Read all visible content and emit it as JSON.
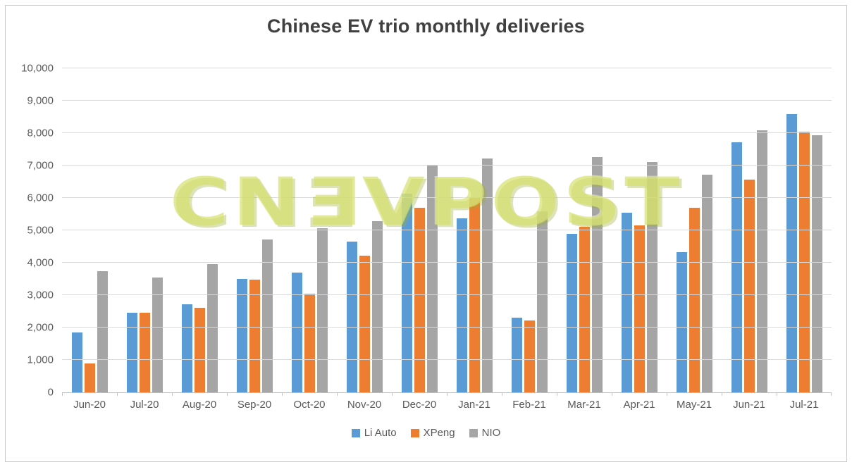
{
  "chart_data": {
    "type": "bar",
    "title": "Chinese EV trio monthly deliveries",
    "categories": [
      "Jun-20",
      "Jul-20",
      "Aug-20",
      "Sep-20",
      "Oct-20",
      "Nov-20",
      "Dec-20",
      "Jan-21",
      "Feb-21",
      "Mar-21",
      "Apr-21",
      "May-21",
      "Jun-21",
      "Jul-21"
    ],
    "series": [
      {
        "name": "Li Auto",
        "color": "#5B9BD5",
        "values": [
          1850,
          2451,
          2711,
          3504,
          3692,
          4646,
          6126,
          5379,
          2300,
          4900,
          5539,
          4323,
          7713,
          8589
        ]
      },
      {
        "name": "XPeng",
        "color": "#ED7D31",
        "values": [
          900,
          2451,
          2619,
          3478,
          3040,
          4224,
          5700,
          6015,
          2223,
          5102,
          5147,
          5686,
          6565,
          8040
        ]
      },
      {
        "name": "NIO",
        "color": "#A5A5A5",
        "values": [
          3740,
          3533,
          3965,
          4708,
          5055,
          5291,
          7007,
          7225,
          5578,
          7257,
          7102,
          6711,
          8083,
          7931
        ]
      }
    ],
    "ylim": [
      0,
      10000
    ],
    "ytick_interval": 1000,
    "grid": true,
    "legend_position": "bottom",
    "watermark": "CNEVPOST",
    "colors": {
      "title": "#404040",
      "axis_labels": "#595959",
      "gridline": "#D9D9D9",
      "axis_line": "#BFBFBF",
      "watermark": "#D4E069"
    }
  }
}
